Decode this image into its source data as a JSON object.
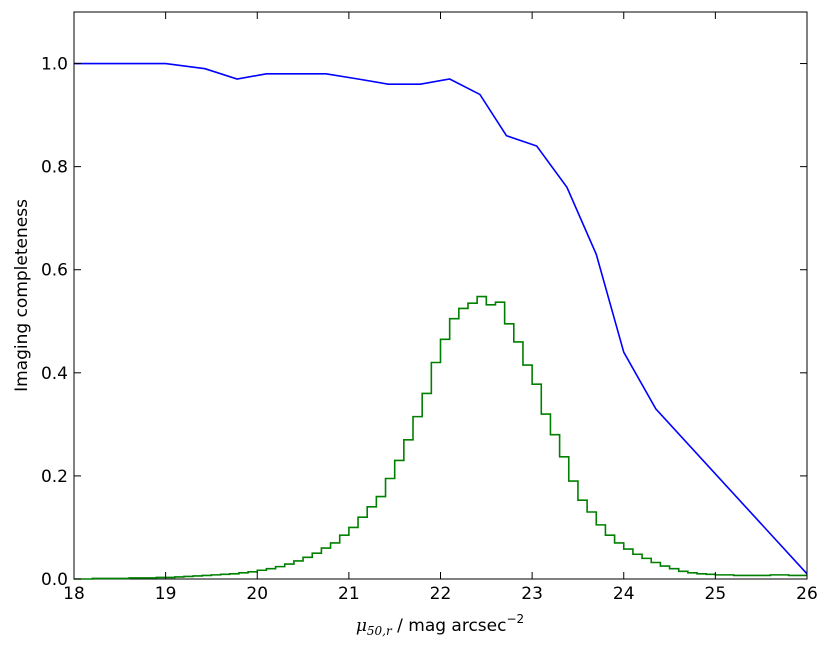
{
  "chart_data": {
    "type": "line",
    "title": "",
    "xlabel": {
      "symbol": "μ",
      "subscript": "50,r",
      "rest": " / mag arcsec",
      "exponent": "−2"
    },
    "ylabel": "Imaging completeness",
    "xlim": [
      18,
      26
    ],
    "ylim": [
      0,
      1.1
    ],
    "xticks": [
      "18",
      "19",
      "20",
      "21",
      "22",
      "23",
      "24",
      "25",
      "26"
    ],
    "yticks": [
      "0.0",
      "0.2",
      "0.4",
      "0.6",
      "0.8",
      "1.0"
    ],
    "grid": false,
    "legend": "none",
    "series": [
      {
        "style": "line",
        "color": "#0000ff",
        "x": [
          18,
          19,
          19.43,
          19.78,
          20.1,
          20.42,
          20.75,
          21.1,
          21.43,
          21.78,
          22.1,
          22.43,
          22.72,
          23.05,
          23.38,
          23.7,
          24.0,
          24.35,
          26.0
        ],
        "y": [
          1.0,
          1.0,
          0.99,
          0.97,
          0.98,
          0.98,
          0.98,
          0.97,
          0.96,
          0.96,
          0.97,
          0.94,
          0.86,
          0.84,
          0.76,
          0.63,
          0.44,
          0.33,
          0.01
        ]
      },
      {
        "style": "step",
        "color": "#008000",
        "bin_start": 18,
        "bin_width": 0.1,
        "y": [
          0.0,
          0.0,
          0.001,
          0.001,
          0.001,
          0.001,
          0.002,
          0.002,
          0.002,
          0.003,
          0.003,
          0.004,
          0.005,
          0.006,
          0.007,
          0.008,
          0.009,
          0.01,
          0.012,
          0.014,
          0.017,
          0.02,
          0.024,
          0.029,
          0.035,
          0.042,
          0.05,
          0.06,
          0.07,
          0.085,
          0.1,
          0.12,
          0.14,
          0.16,
          0.195,
          0.23,
          0.27,
          0.315,
          0.36,
          0.42,
          0.465,
          0.505,
          0.525,
          0.535,
          0.548,
          0.532,
          0.537,
          0.495,
          0.46,
          0.415,
          0.378,
          0.32,
          0.28,
          0.237,
          0.19,
          0.153,
          0.13,
          0.105,
          0.085,
          0.07,
          0.058,
          0.048,
          0.04,
          0.032,
          0.025,
          0.02,
          0.015,
          0.012,
          0.01,
          0.009,
          0.008,
          0.008,
          0.007,
          0.007,
          0.007,
          0.007,
          0.008,
          0.008,
          0.007,
          0.007
        ]
      }
    ]
  }
}
